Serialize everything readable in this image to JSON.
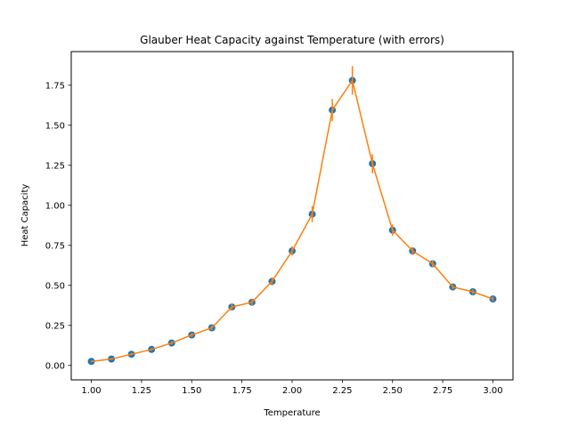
{
  "chart_data": {
    "type": "scatter",
    "title": "Glauber Heat Capacity against Temperature (with errors)",
    "xlabel": "Temperature",
    "ylabel": "Heat Capacity",
    "xlim": [
      0.9,
      3.1
    ],
    "ylim": [
      -0.09,
      1.96
    ],
    "grid": false,
    "x_ticks": [
      "1.00",
      "1.25",
      "1.50",
      "1.75",
      "2.00",
      "2.25",
      "2.50",
      "2.75",
      "3.00"
    ],
    "y_ticks": [
      "0.00",
      "0.25",
      "0.50",
      "0.75",
      "1.00",
      "1.25",
      "1.50",
      "1.75"
    ],
    "colors": {
      "points": "#1f77b4",
      "errorbar_line": "#ff7f0e"
    },
    "series": [
      {
        "x": [
          1.0,
          1.1,
          1.2,
          1.3,
          1.4,
          1.5,
          1.6,
          1.7,
          1.8,
          1.9,
          2.0,
          2.1,
          2.2,
          2.3,
          2.4,
          2.5,
          2.6,
          2.7,
          2.8,
          2.9,
          3.0
        ],
        "y": [
          0.025,
          0.04,
          0.07,
          0.1,
          0.14,
          0.19,
          0.235,
          0.365,
          0.395,
          0.525,
          0.715,
          0.945,
          1.595,
          1.78,
          1.26,
          0.845,
          0.715,
          0.635,
          0.49,
          0.46,
          0.415
        ],
        "yerr": [
          0.005,
          0.005,
          0.008,
          0.008,
          0.01,
          0.012,
          0.015,
          0.02,
          0.02,
          0.025,
          0.03,
          0.05,
          0.07,
          0.09,
          0.06,
          0.035,
          0.025,
          0.02,
          0.015,
          0.015,
          0.015
        ]
      }
    ]
  }
}
